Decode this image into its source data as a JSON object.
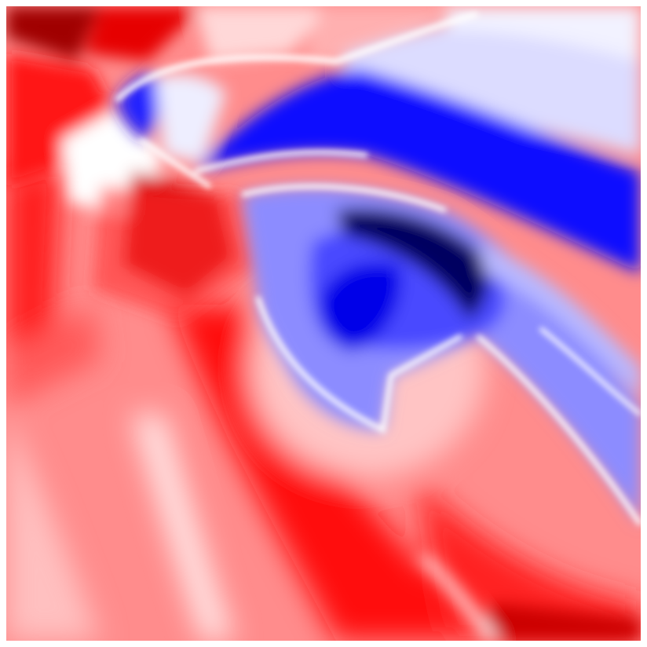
{
  "image": {
    "kind": "diverging-colormap-field",
    "colormap": "bwr",
    "colors": {
      "negative_extreme": "#00004a",
      "negative_strong": "#0000ff",
      "negative_mid": "#4c4cff",
      "negative_light": "#9a9aff",
      "negative_pale": "#d4d4ff",
      "neutral": "#ffffff",
      "positive_pale": "#ffd0d0",
      "positive_light": "#ff9898",
      "positive_mid": "#ff5a5a",
      "positive_strong": "#ff0000",
      "positive_extreme": "#7a0000",
      "border": "#ffffff"
    }
  }
}
